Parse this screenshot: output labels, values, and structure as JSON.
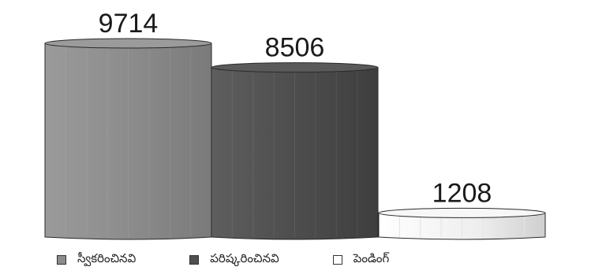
{
  "chart_data": {
    "type": "bar",
    "categories": [
      "స్వీకరించినవి",
      "పరిష్కరించినవి",
      "పెండింగ్"
    ],
    "values": [
      9714,
      8506,
      1208
    ],
    "value_labels": [
      "9714",
      "8506",
      "1208"
    ],
    "colors": [
      "#8c8c8c",
      "#4f4f4f",
      "#efefef"
    ],
    "ylim": [
      0,
      9714
    ],
    "legend_placement": "bottom",
    "legend": [
      {
        "label": "స్వీకరించినవి",
        "color": "#8c8c8c"
      },
      {
        "label": "పరిష్కరించినవి",
        "color": "#4f4f4f"
      },
      {
        "label": "పెండింగ్",
        "color": "#ffffff"
      }
    ]
  }
}
